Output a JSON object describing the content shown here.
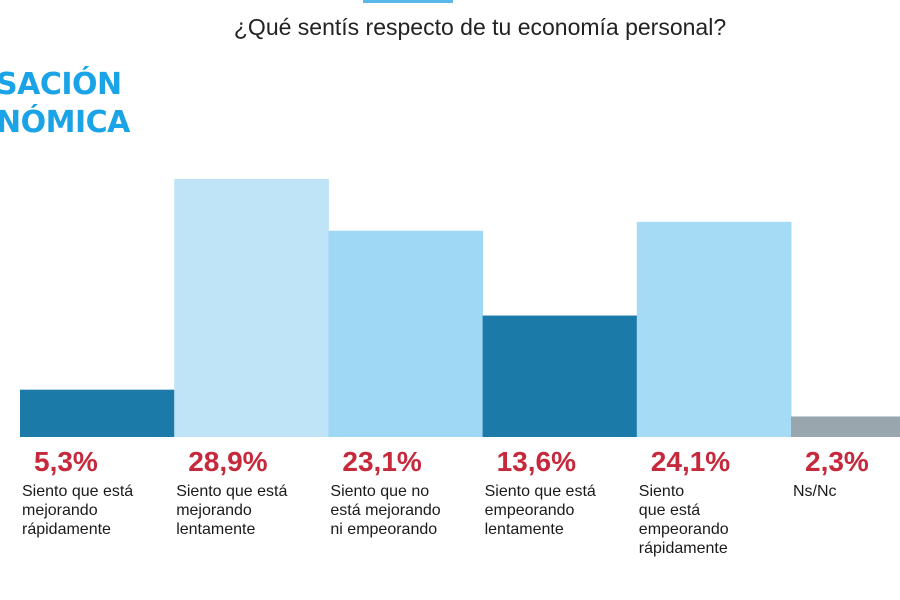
{
  "header": {
    "title": "¿Qué sentís respecto de tu economía personal?",
    "kicker_lines": [
      "SACIÓN",
      "NÓMICA"
    ]
  },
  "chart_data": {
    "type": "bar",
    "title": "¿Qué sentís respecto de tu economía personal?",
    "categories": [
      "Siento que está mejorando rápidamente",
      "Siento que está mejorando lentamente",
      "Siento que no está mejorando ni empeorando",
      "Siento que está empeorando lentamente",
      "Siento que está empeorando rápidamente",
      "Ns/Nc"
    ],
    "values": [
      5.3,
      28.9,
      23.1,
      13.6,
      24.1,
      2.3
    ],
    "value_labels": [
      "5,3%",
      "28,9%",
      "23,1%",
      "13,6%",
      "24,1%",
      "2,3%"
    ],
    "label_lines": [
      [
        "Siento que está",
        "mejorando",
        "rápidamente"
      ],
      [
        "Siento que está",
        "mejorando",
        "lentamente"
      ],
      [
        "Siento que no",
        "está mejorando",
        "ni empeorando"
      ],
      [
        "Siento que está",
        "empeorando",
        "lentamente"
      ],
      [
        "Siento",
        "que está",
        "empeorando",
        "rápidamente"
      ],
      [
        "Ns/Nc"
      ]
    ],
    "colors": [
      "#1b7aa8",
      "#bfe4f8",
      "#9fd8f4",
      "#1b7aa8",
      "#a6dbf5",
      "#9aa6ae"
    ],
    "value_label_color": "#c6283c",
    "ylim": [
      0,
      30
    ],
    "grid": false
  }
}
